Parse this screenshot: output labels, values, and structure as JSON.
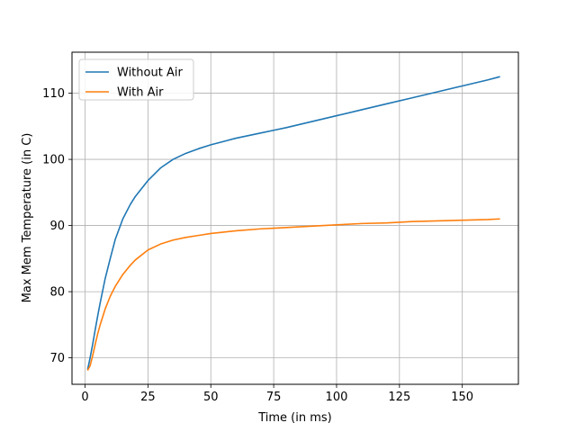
{
  "chart_data": {
    "type": "line",
    "title": "",
    "xlabel": "Time (in ms)",
    "ylabel": "Max Mem Temperature (in C)",
    "xlim": [
      -5.2,
      172.3
    ],
    "ylim": [
      66.0,
      116.2
    ],
    "xticks": [
      0,
      25,
      50,
      75,
      100,
      125,
      150
    ],
    "yticks": [
      70,
      80,
      90,
      100,
      110
    ],
    "grid": true,
    "legend_position": "upper-left",
    "series": [
      {
        "name": "Without Air",
        "color": "#1f77b4",
        "x": [
          1,
          2,
          3,
          4,
          5,
          6,
          8,
          10,
          12,
          15,
          18,
          20,
          25,
          30,
          35,
          40,
          45,
          50,
          55,
          60,
          70,
          75,
          80,
          90,
          100,
          110,
          120,
          130,
          140,
          150,
          160,
          165
        ],
        "y": [
          68.2,
          70.0,
          72.0,
          74.2,
          76.3,
          78.3,
          82.0,
          85.0,
          87.9,
          91.0,
          93.2,
          94.4,
          96.8,
          98.7,
          100.0,
          100.9,
          101.6,
          102.2,
          102.7,
          103.2,
          104.0,
          104.4,
          104.8,
          105.7,
          106.6,
          107.5,
          108.4,
          109.3,
          110.2,
          111.1,
          112.0,
          112.5
        ]
      },
      {
        "name": "With Air",
        "color": "#ff7f0e",
        "x": [
          1,
          2,
          3,
          4,
          5,
          6,
          8,
          10,
          12,
          15,
          18,
          20,
          25,
          30,
          35,
          40,
          45,
          50,
          55,
          60,
          70,
          75,
          80,
          90,
          100,
          110,
          120,
          130,
          140,
          150,
          160,
          165
        ],
        "y": [
          68.1,
          68.8,
          70.3,
          72.0,
          73.6,
          75.0,
          77.4,
          79.3,
          80.8,
          82.6,
          84.0,
          84.8,
          86.3,
          87.2,
          87.8,
          88.2,
          88.5,
          88.8,
          89.0,
          89.2,
          89.5,
          89.6,
          89.7,
          89.9,
          90.1,
          90.3,
          90.4,
          90.6,
          90.7,
          90.8,
          90.9,
          91.0
        ]
      }
    ]
  }
}
